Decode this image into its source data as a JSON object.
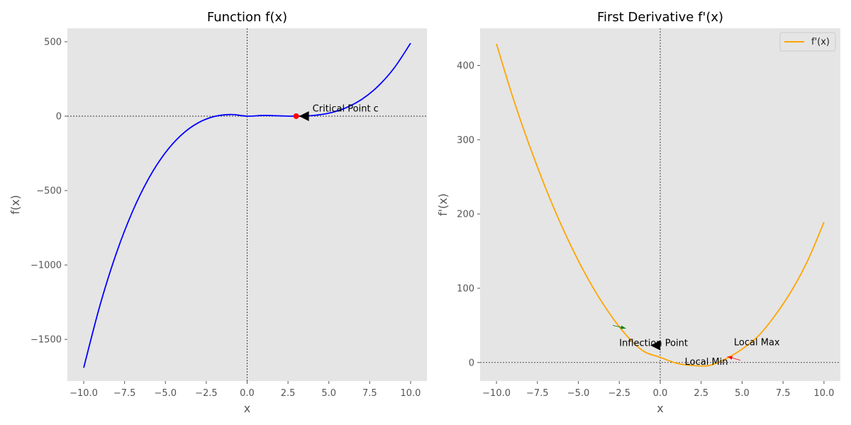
{
  "colors": {
    "panel_bg": "#e5e5e5",
    "f_curve": "#0000ff",
    "fp_curve": "#ffa500",
    "critical_point": "#ff0000",
    "zero_line": "#000000",
    "green_arrow": "#008000",
    "red_arrow": "#ff0000"
  },
  "chart_data": [
    {
      "type": "line",
      "title": "Function f(x)",
      "xlabel": "x",
      "ylabel": "f(x)",
      "xlim": [
        -11,
        11
      ],
      "ylim": [
        -1780,
        590
      ],
      "xticks": [
        -10.0,
        -7.5,
        -5.0,
        -2.5,
        0.0,
        2.5,
        5.0,
        7.5,
        10.0
      ],
      "xtick_labels": [
        "−10.0",
        "−7.5",
        "−5.0",
        "−2.5",
        "0.0",
        "2.5",
        "5.0",
        "7.5",
        "10.0"
      ],
      "yticks": [
        500,
        0,
        -500,
        -1000,
        -1500
      ],
      "ytick_labels": [
        "500",
        "0",
        "−500",
        "−1000",
        "−1500"
      ],
      "grid": false,
      "legend": null,
      "series": [
        {
          "x": [
            -10,
            -9,
            -8,
            -7,
            -6,
            -5,
            -4,
            -3,
            -2,
            -1,
            0,
            1,
            2,
            3,
            4,
            5,
            6,
            7,
            8,
            9,
            10
          ],
          "y": [
            -1690,
            -1269,
            -920,
            -637,
            -414,
            -245,
            -124,
            -45,
            -2,
            11,
            0,
            5,
            2,
            0,
            4,
            20,
            54,
            112,
            200,
            324,
            490
          ]
        }
      ],
      "marker": {
        "x": 3,
        "y": 0
      },
      "reference_lines": {
        "x": 0,
        "y": 0
      },
      "annotations": [
        {
          "text": "Critical Point c",
          "point": [
            3,
            0
          ],
          "text_at": [
            4.0,
            30
          ]
        }
      ]
    },
    {
      "type": "line",
      "title": "First Derivative f'(x)",
      "xlabel": "x",
      "ylabel": "f'(x)",
      "xlim": [
        -11,
        11
      ],
      "ylim": [
        -25,
        450
      ],
      "xticks": [
        -10.0,
        -7.5,
        -5.0,
        -2.5,
        0.0,
        2.5,
        5.0,
        7.5,
        10.0
      ],
      "xtick_labels": [
        "−10.0",
        "−7.5",
        "−5.0",
        "−2.5",
        "0.0",
        "2.5",
        "5.0",
        "7.5",
        "10.0"
      ],
      "yticks": [
        0,
        100,
        200,
        300,
        400
      ],
      "ytick_labels": [
        "0",
        "100",
        "200",
        "300",
        "400"
      ],
      "grid": false,
      "legend": {
        "position": "top-right",
        "entries": [
          "f'(x)"
        ]
      },
      "series": [
        {
          "name": "f'(x)",
          "x": [
            -10,
            -9,
            -8,
            -7,
            -6,
            -5,
            -4,
            -3,
            -2,
            -1,
            0,
            1,
            2,
            3,
            4,
            5,
            6,
            7,
            8,
            9,
            10
          ],
          "y": [
            429,
            357,
            293,
            235,
            183,
            137,
            97,
            63,
            35,
            15,
            7,
            -1,
            -4,
            -4,
            5,
            18,
            36,
            63,
            96,
            137,
            189
          ]
        }
      ],
      "reference_lines": {
        "x": 0,
        "y": 0
      },
      "annotations": [
        {
          "text": "Inflection Point",
          "point": [
            -0.6,
            23
          ],
          "text_at": [
            -2.5,
            22
          ]
        },
        {
          "text": "Local Max",
          "point": [
            4.1,
            8
          ],
          "text_at": [
            4.5,
            23
          ]
        },
        {
          "text": "Local Min",
          "point": [
            2.9,
            0
          ],
          "text_at": [
            1.5,
            -3
          ]
        }
      ],
      "extra_arrows": [
        {
          "from": [
            -2.9,
            50
          ],
          "to": [
            -2.1,
            46
          ],
          "color": "green"
        },
        {
          "from": [
            4.9,
            3
          ],
          "to": [
            4.1,
            8
          ],
          "color": "red"
        }
      ]
    }
  ]
}
